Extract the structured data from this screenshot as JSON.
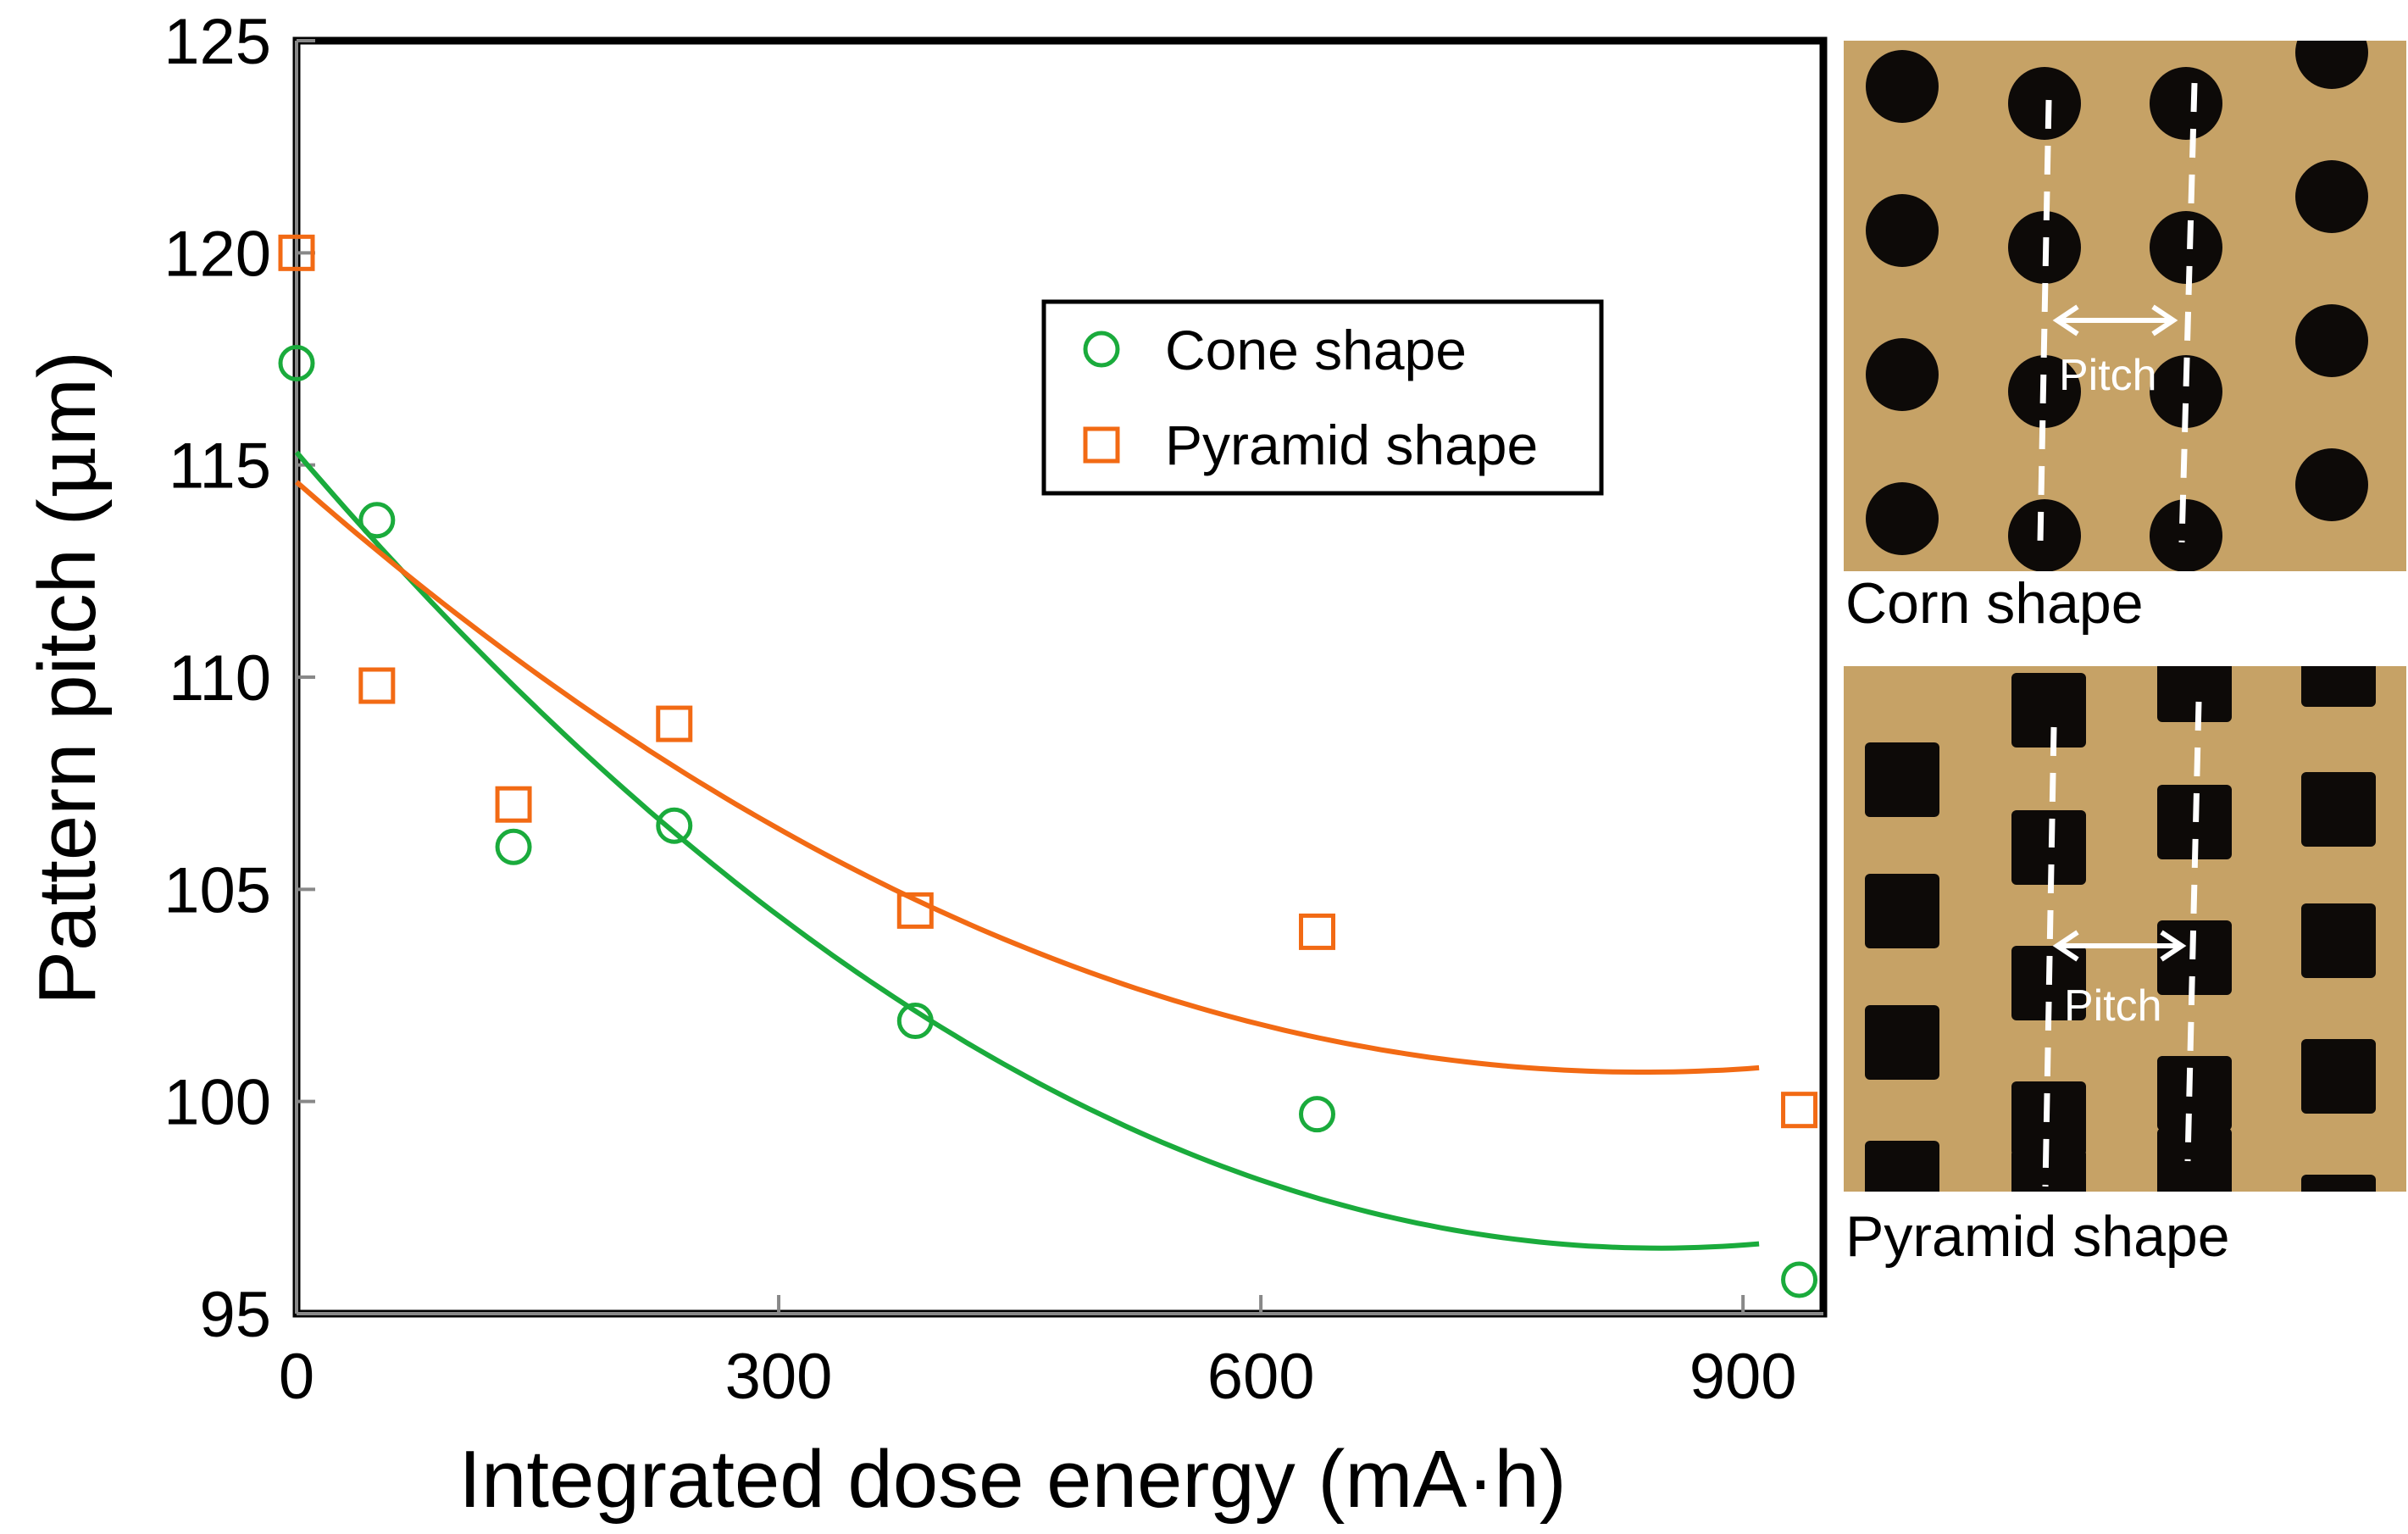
{
  "chart_data": {
    "type": "scatter",
    "xlabel": "Integrated dose energy (mA·h)",
    "ylabel_prefix": "Pattern pitch (",
    "ylabel_mu": "μ",
    "ylabel_suffix": "m)",
    "xlim": [
      0,
      950
    ],
    "ylim": [
      95,
      125
    ],
    "xticks": [
      0,
      300,
      600,
      900
    ],
    "yticks": [
      95,
      100,
      105,
      110,
      115,
      120,
      125
    ],
    "grid": false,
    "legend_position": "top-right",
    "series": [
      {
        "name": "Cone shape",
        "marker": "circle",
        "color": "#1aab3c",
        "points": [
          {
            "x": 0,
            "y": 117.4
          },
          {
            "x": 50,
            "y": 113.7
          },
          {
            "x": 135,
            "y": 106.0
          },
          {
            "x": 235,
            "y": 106.5
          },
          {
            "x": 385,
            "y": 101.9
          },
          {
            "x": 635,
            "y": 99.7
          },
          {
            "x": 935,
            "y": 95.8
          }
        ],
        "fit": {
          "type": "poly2",
          "x_range": [
            0,
            910
          ],
          "a": 2.61e-05,
          "b": -0.04425,
          "c": 115.3
        }
      },
      {
        "name": "Pyramid shape",
        "marker": "square",
        "color": "#f26a14",
        "points": [
          {
            "x": 0,
            "y": 120.0
          },
          {
            "x": 50,
            "y": 109.8
          },
          {
            "x": 135,
            "y": 107.0
          },
          {
            "x": 235,
            "y": 108.9
          },
          {
            "x": 385,
            "y": 104.5
          },
          {
            "x": 635,
            "y": 104.0
          },
          {
            "x": 935,
            "y": 99.8
          }
        ],
        "fit": {
          "type": "poly2",
          "x_range": [
            0,
            910
          ],
          "a": 1.98e-05,
          "b": -0.03319,
          "c": 114.6
        }
      }
    ]
  },
  "photos": [
    {
      "caption": "Corn shape",
      "label": "Pitch",
      "feature": "circle"
    },
    {
      "caption": "Pyramid shape",
      "label": "Pitch",
      "feature": "square"
    }
  ],
  "colors": {
    "photo_background": "#c6a266",
    "feature_fill": "#0d0a08",
    "cone": "#1aab3c",
    "pyramid": "#f26a14"
  }
}
